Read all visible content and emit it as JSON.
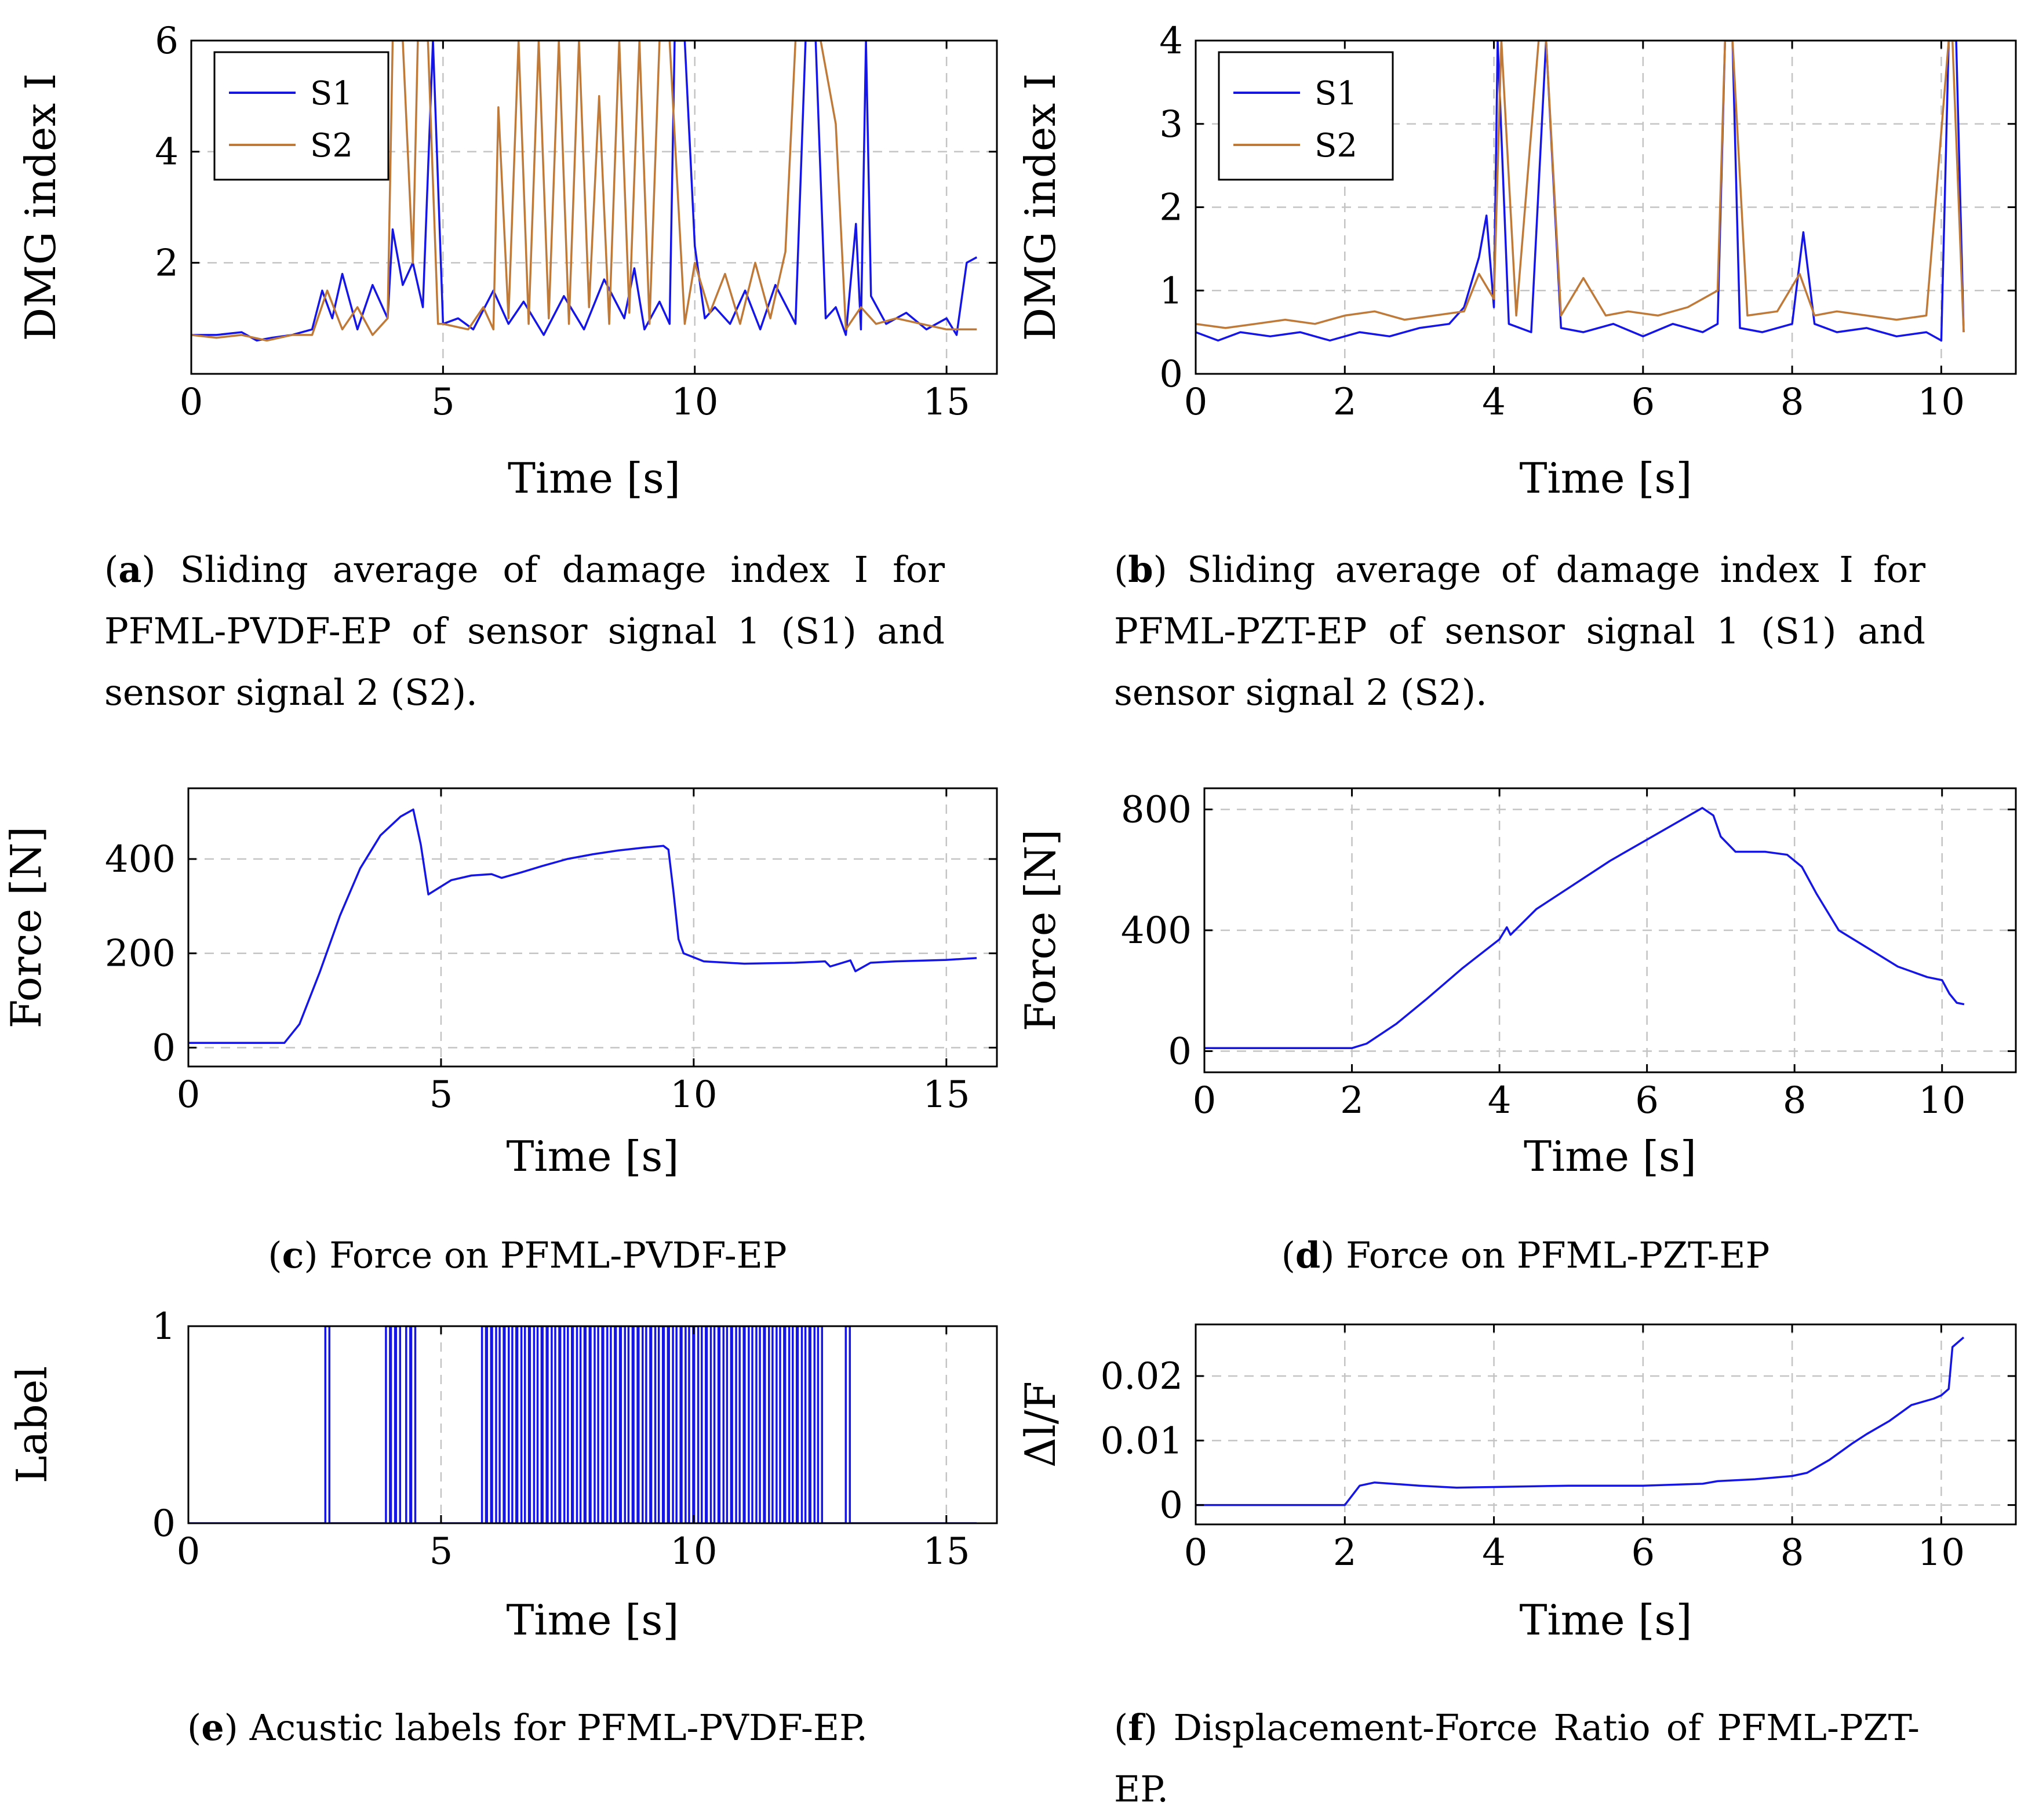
{
  "colors": {
    "s1": "#1515e6",
    "s2": "#bf7a3a",
    "grid": "#c4c4c4",
    "axis": "#000000"
  },
  "captions": {
    "a": {
      "letter": "a",
      "text": " Sliding average of damage index I for PFML-PVDF-EP of sensor signal 1 (S1) and sensor signal 2 (S2)."
    },
    "b": {
      "letter": "b",
      "text": " Sliding average of damage index I for PFML-PZT-EP of sensor signal 1 (S1) and sensor signal 2 (S2)."
    },
    "c": {
      "letter": "c",
      "text": " Force on PFML-PVDF-EP"
    },
    "d": {
      "letter": "d",
      "text": " Force on PFML-PZT-EP"
    },
    "e": {
      "letter": "e",
      "text": " Acustic labels for PFML-PVDF-EP."
    },
    "f": {
      "letter": "f",
      "text": " Displacement-Force Ratio of PFML-PZT-EP."
    }
  },
  "chart_data": [
    {
      "id": "a",
      "type": "line",
      "xlabel": "Time [s]",
      "ylabel": "DMG index I",
      "xlim": [
        0,
        16
      ],
      "ylim": [
        0,
        6
      ],
      "clip_bottom": 0.35,
      "xticks": [
        0,
        5,
        10,
        15
      ],
      "xtick_labels": [
        "0",
        "5",
        "10",
        "15"
      ],
      "yticks": [
        2,
        4,
        6
      ],
      "ytick_labels": [
        "2",
        "4",
        "6"
      ],
      "grid": true,
      "legend": "top-left",
      "series": [
        {
          "name": "S1",
          "color": "#1515e6",
          "x": [
            0,
            0.5,
            1.0,
            1.3,
            1.6,
            2.0,
            2.4,
            2.6,
            2.8,
            3.0,
            3.3,
            3.6,
            3.9,
            4.0,
            4.2,
            4.4,
            4.6,
            4.8,
            5.0,
            5.3,
            5.6,
            6.0,
            6.3,
            6.6,
            7.0,
            7.4,
            7.8,
            8.2,
            8.6,
            8.8,
            9.0,
            9.3,
            9.5,
            9.6,
            9.8,
            10.0,
            10.2,
            10.4,
            10.7,
            11.0,
            11.3,
            11.6,
            12.0,
            12.2,
            12.4,
            12.6,
            12.8,
            13.0,
            13.2,
            13.3,
            13.4,
            13.5,
            13.8,
            14.2,
            14.6,
            15.0,
            15.2,
            15.4,
            15.6
          ],
          "y": [
            0.7,
            0.7,
            0.75,
            0.6,
            0.65,
            0.7,
            0.8,
            1.5,
            1.0,
            1.8,
            0.8,
            1.6,
            1.0,
            2.6,
            1.6,
            2.0,
            1.2,
            6.0,
            0.9,
            1.0,
            0.8,
            1.5,
            0.9,
            1.3,
            0.7,
            1.4,
            0.8,
            1.7,
            1.0,
            1.9,
            0.8,
            1.3,
            0.9,
            6.0,
            6.0,
            2.3,
            1.0,
            1.2,
            0.9,
            1.5,
            0.8,
            1.6,
            0.9,
            6.0,
            6.0,
            1.0,
            1.2,
            0.7,
            2.7,
            0.8,
            6.0,
            1.4,
            0.9,
            1.1,
            0.8,
            1.0,
            0.7,
            2.0,
            2.1
          ]
        },
        {
          "name": "S2",
          "color": "#bf7a3a",
          "x": [
            0,
            0.5,
            1.0,
            1.5,
            2.0,
            2.4,
            2.7,
            3.0,
            3.3,
            3.6,
            3.9,
            4.0,
            4.2,
            4.4,
            4.5,
            4.7,
            4.9,
            5.0,
            5.5,
            5.8,
            6.0,
            6.1,
            6.3,
            6.5,
            6.7,
            6.9,
            7.1,
            7.3,
            7.5,
            7.7,
            7.9,
            8.1,
            8.3,
            8.5,
            8.7,
            8.9,
            9.1,
            9.3,
            9.5,
            9.8,
            10.0,
            10.3,
            10.6,
            10.9,
            11.2,
            11.5,
            11.8,
            12.0,
            12.2,
            12.5,
            12.8,
            13.0,
            13.3,
            13.6,
            14.0,
            14.5,
            15.0,
            15.6
          ],
          "y": [
            0.7,
            0.65,
            0.7,
            0.6,
            0.7,
            0.7,
            1.5,
            0.8,
            1.2,
            0.7,
            1.0,
            6.0,
            6.0,
            2.0,
            6.0,
            6.0,
            0.9,
            0.9,
            0.8,
            1.2,
            0.8,
            4.8,
            1.0,
            6.0,
            0.9,
            6.0,
            1.0,
            6.0,
            0.9,
            6.0,
            1.2,
            5.0,
            0.9,
            6.0,
            1.1,
            6.0,
            0.9,
            6.0,
            6.0,
            0.9,
            2.0,
            1.1,
            1.8,
            0.9,
            2.0,
            1.0,
            2.2,
            6.0,
            6.0,
            6.0,
            4.5,
            0.8,
            1.2,
            0.9,
            1.0,
            0.9,
            0.8,
            0.8
          ]
        }
      ]
    },
    {
      "id": "b",
      "type": "line",
      "xlabel": "Time [s]",
      "ylabel": "DMG index I",
      "xlim": [
        0,
        11
      ],
      "ylim": [
        0,
        4
      ],
      "xticks": [
        0,
        2,
        4,
        6,
        8,
        10
      ],
      "xtick_labels": [
        "0",
        "2",
        "4",
        "6",
        "8",
        "10"
      ],
      "yticks": [
        0,
        1,
        2,
        3,
        4
      ],
      "ytick_labels": [
        "0",
        "1",
        "2",
        "3",
        "4"
      ],
      "grid": true,
      "legend": "top-left",
      "series": [
        {
          "name": "S1",
          "color": "#1515e6",
          "x": [
            0,
            0.3,
            0.6,
            1.0,
            1.4,
            1.8,
            2.2,
            2.6,
            3.0,
            3.4,
            3.6,
            3.8,
            3.9,
            4.0,
            4.05,
            4.2,
            4.5,
            4.7,
            4.9,
            5.2,
            5.6,
            6.0,
            6.4,
            6.8,
            7.0,
            7.1,
            7.2,
            7.3,
            7.6,
            8.0,
            8.15,
            8.3,
            8.6,
            9.0,
            9.4,
            9.8,
            10.0,
            10.1,
            10.2,
            10.3
          ],
          "y": [
            0.5,
            0.4,
            0.5,
            0.45,
            0.5,
            0.4,
            0.5,
            0.45,
            0.55,
            0.6,
            0.8,
            1.4,
            1.9,
            0.8,
            4.0,
            0.6,
            0.5,
            4.0,
            0.55,
            0.5,
            0.6,
            0.45,
            0.6,
            0.5,
            0.6,
            4.0,
            4.0,
            0.55,
            0.5,
            0.6,
            1.7,
            0.6,
            0.5,
            0.55,
            0.45,
            0.5,
            0.4,
            4.0,
            4.0,
            0.5
          ]
        },
        {
          "name": "S2",
          "color": "#bf7a3a",
          "x": [
            0,
            0.4,
            0.8,
            1.2,
            1.6,
            2.0,
            2.4,
            2.8,
            3.2,
            3.6,
            3.8,
            4.0,
            4.1,
            4.3,
            4.6,
            4.7,
            4.9,
            5.2,
            5.5,
            5.8,
            6.2,
            6.6,
            7.0,
            7.1,
            7.2,
            7.4,
            7.8,
            8.1,
            8.3,
            8.6,
            9.0,
            9.4,
            9.8,
            10.1,
            10.15,
            10.3
          ],
          "y": [
            0.6,
            0.55,
            0.6,
            0.65,
            0.6,
            0.7,
            0.75,
            0.65,
            0.7,
            0.75,
            1.2,
            0.9,
            4.0,
            0.7,
            4.0,
            4.0,
            0.7,
            1.15,
            0.7,
            0.75,
            0.7,
            0.8,
            1.0,
            4.0,
            4.0,
            0.7,
            0.75,
            1.2,
            0.7,
            0.75,
            0.7,
            0.65,
            0.7,
            4.0,
            4.0,
            0.5
          ]
        }
      ]
    },
    {
      "id": "c",
      "type": "line",
      "xlabel": "Time [s]",
      "ylabel": "Force [N]",
      "xlim": [
        0,
        16
      ],
      "ylim": [
        -40,
        550
      ],
      "xticks": [
        0,
        5,
        10,
        15
      ],
      "xtick_labels": [
        "0",
        "5",
        "10",
        "15"
      ],
      "yticks": [
        0,
        200,
        400
      ],
      "ytick_labels": [
        "0",
        "200",
        "400"
      ],
      "grid": true,
      "series": [
        {
          "name": "",
          "color": "#1515e6",
          "x": [
            0,
            1.9,
            2.2,
            2.6,
            3.0,
            3.4,
            3.8,
            4.2,
            4.45,
            4.6,
            4.75,
            5.2,
            5.6,
            6.0,
            6.2,
            6.6,
            7.0,
            7.5,
            8.0,
            8.5,
            9.0,
            9.4,
            9.5,
            9.6,
            9.7,
            9.8,
            10.2,
            11.0,
            12.0,
            12.6,
            12.7,
            13.1,
            13.2,
            13.5,
            14.0,
            15.0,
            15.6
          ],
          "y": [
            10,
            10,
            50,
            160,
            280,
            380,
            450,
            490,
            505,
            430,
            325,
            355,
            365,
            368,
            360,
            372,
            385,
            400,
            410,
            418,
            424,
            428,
            420,
            330,
            230,
            200,
            183,
            178,
            180,
            183,
            172,
            185,
            162,
            180,
            183,
            186,
            190
          ]
        }
      ]
    },
    {
      "id": "d",
      "type": "line",
      "xlabel": "Time [s]",
      "ylabel": "Force [N]",
      "xlim": [
        0,
        11
      ],
      "ylim": [
        -70,
        870
      ],
      "xticks": [
        0,
        2,
        4,
        6,
        8,
        10
      ],
      "xtick_labels": [
        "0",
        "2",
        "4",
        "6",
        "8",
        "10"
      ],
      "yticks": [
        0,
        400,
        800
      ],
      "ytick_labels": [
        "0",
        "400",
        "800"
      ],
      "grid": true,
      "series": [
        {
          "name": "",
          "color": "#1515e6",
          "x": [
            0,
            2.0,
            2.2,
            2.6,
            3.0,
            3.5,
            4.0,
            4.1,
            4.15,
            4.5,
            5.0,
            5.5,
            6.0,
            6.5,
            6.75,
            6.9,
            7.0,
            7.2,
            7.6,
            7.9,
            8.1,
            8.3,
            8.6,
            9.0,
            9.4,
            9.8,
            10.0,
            10.1,
            10.2,
            10.3
          ],
          "y": [
            10,
            10,
            25,
            90,
            170,
            275,
            370,
            410,
            385,
            470,
            550,
            630,
            700,
            770,
            805,
            780,
            710,
            660,
            660,
            650,
            610,
            520,
            400,
            340,
            280,
            245,
            235,
            190,
            160,
            155
          ]
        }
      ]
    },
    {
      "id": "e",
      "type": "line",
      "xlabel": "Time [s]",
      "ylabel": "Label",
      "xlim": [
        0,
        16
      ],
      "ylim": [
        0,
        1
      ],
      "xticks": [
        0,
        5,
        10,
        15
      ],
      "xtick_labels": [
        "0",
        "5",
        "10",
        "15"
      ],
      "yticks": [
        0,
        1
      ],
      "ytick_labels": [
        "0",
        "1"
      ],
      "grid": true,
      "step": true,
      "series": [
        {
          "name": "",
          "color": "#1515e6",
          "events": [
            2.75,
            3.95,
            4.05,
            4.15,
            4.35,
            4.45,
            5.85,
            5.95,
            6.05,
            6.2,
            6.3,
            6.45,
            6.55,
            6.7,
            6.8,
            6.95,
            7.05,
            7.15,
            7.3,
            7.4,
            7.55,
            7.65,
            7.8,
            7.9,
            8.0,
            8.15,
            8.25,
            8.4,
            8.5,
            8.6,
            8.75,
            8.85,
            8.95,
            9.1,
            9.2,
            9.35,
            9.45,
            9.55,
            9.7,
            9.8,
            9.95,
            10.05,
            10.2,
            10.3,
            10.45,
            10.55,
            10.7,
            10.8,
            10.95,
            11.05,
            11.2,
            11.35,
            11.45,
            11.6,
            11.75,
            11.85,
            12.0,
            12.1,
            12.25,
            12.35,
            12.5,
            13.05
          ]
        }
      ]
    },
    {
      "id": "f",
      "type": "line",
      "xlabel": "Time [s]",
      "ylabel": "Δl/F",
      "xlim": [
        0,
        11
      ],
      "ylim": [
        -0.003,
        0.028
      ],
      "xticks": [
        0,
        2,
        4,
        6,
        8,
        10
      ],
      "xtick_labels": [
        "0",
        "2",
        "4",
        "6",
        "8",
        "10"
      ],
      "yticks": [
        0,
        0.01,
        0.02
      ],
      "ytick_labels": [
        "0",
        "0.01",
        "0.02"
      ],
      "grid": true,
      "series": [
        {
          "name": "",
          "color": "#1515e6",
          "x": [
            0,
            2.0,
            2.1,
            2.2,
            2.4,
            3.0,
            3.5,
            4.0,
            5.0,
            6.0,
            6.8,
            7.0,
            7.5,
            8.0,
            8.2,
            8.5,
            8.8,
            9.0,
            9.3,
            9.6,
            9.9,
            10.0,
            10.1,
            10.15,
            10.3
          ],
          "y": [
            0,
            0,
            0.0015,
            0.003,
            0.0035,
            0.003,
            0.0027,
            0.0028,
            0.003,
            0.003,
            0.0033,
            0.0037,
            0.004,
            0.0045,
            0.005,
            0.007,
            0.0095,
            0.011,
            0.013,
            0.0155,
            0.0165,
            0.017,
            0.018,
            0.0245,
            0.026
          ]
        }
      ]
    }
  ]
}
